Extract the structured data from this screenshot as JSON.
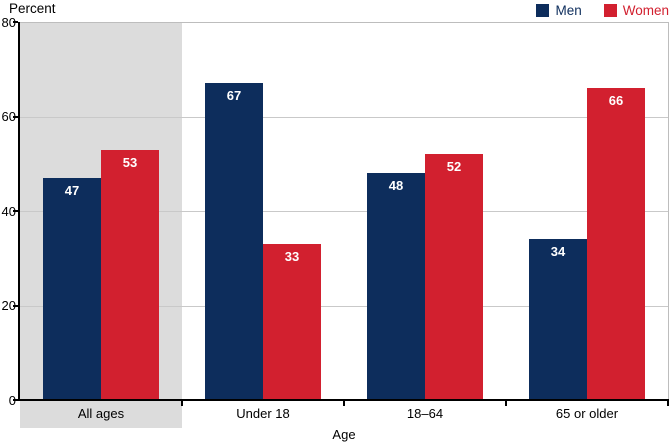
{
  "chart_data": {
    "type": "bar",
    "title": "",
    "ylabel": "Percent",
    "xlabel": "Age",
    "categories": [
      "All ages",
      "Under 18",
      "18–64",
      "65 or older"
    ],
    "series": [
      {
        "name": "Men",
        "color": "#0d2d5c",
        "values": [
          47,
          67,
          48,
          34
        ]
      },
      {
        "name": "Women",
        "color": "#d2202f",
        "values": [
          53,
          33,
          52,
          66
        ]
      }
    ],
    "ylim": [
      0,
      80
    ],
    "yticks": [
      0,
      20,
      40,
      60,
      80
    ],
    "grid": true,
    "legend_position": "top-right",
    "bar_value_labels": true,
    "highlight": {
      "category": "All ages",
      "color": "#dcdcdc"
    }
  }
}
